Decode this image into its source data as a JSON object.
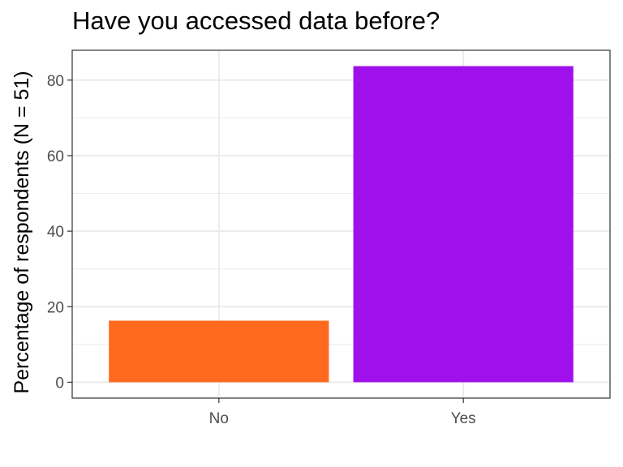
{
  "chart_data": {
    "type": "bar",
    "title": "Have you accessed data before?",
    "xlabel": "",
    "ylabel": "Percentage of respondents (N = 51)",
    "categories": [
      "No",
      "Yes"
    ],
    "values": [
      16.3,
      83.7
    ],
    "colors": [
      "#FF6A1E",
      "#A010EC"
    ],
    "ylim": [
      -4.2,
      87.9
    ],
    "yticks": [
      0,
      20,
      40,
      60,
      80
    ],
    "grid": true,
    "legend": "none",
    "theme": "bw"
  }
}
